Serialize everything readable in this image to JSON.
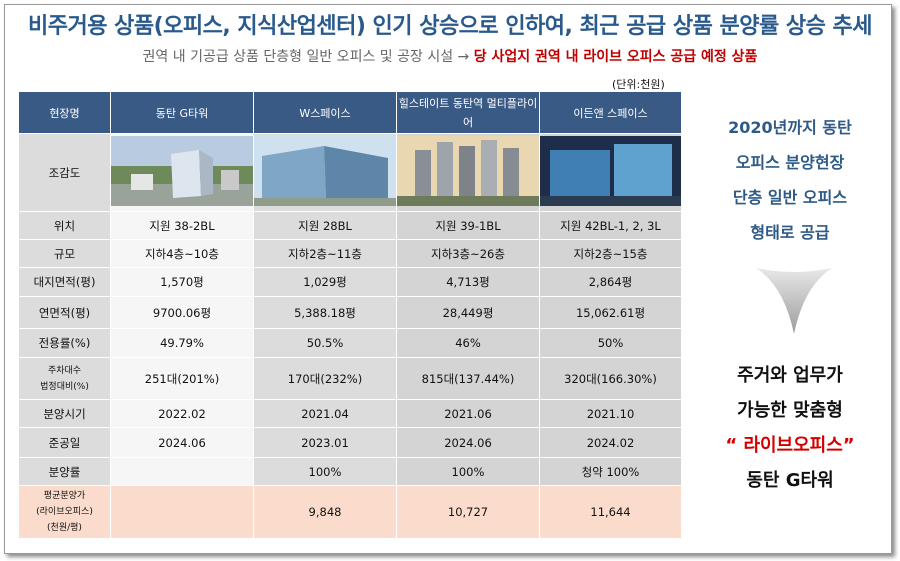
{
  "header": {
    "title": "비주거용 상품(오피스, 지식산업센터) 인기 상승으로 인하여, 최근 공급 상품 분양률 상승 추세",
    "subtitle_prefix": "권역 내 기공급 상품 단층형 일반 오피스 및 공장 시설 →",
    "subtitle_highlight": "당 사업지 권역 내 라이브 오피스 공급 예정 상품",
    "unit": "(단위:천원)"
  },
  "table": {
    "columns": [
      "현장명",
      "동탄 G타워",
      "W스페이스",
      "힐스테이트 동탄역 멀티플라이어",
      "이든앤 스페이스"
    ],
    "image_row_label": "조감도",
    "rows": [
      {
        "label": "위치",
        "values": [
          "지원 38-2BL",
          "지원 28BL",
          "지원 39-1BL",
          "지원 42BL-1, 2, 3L"
        ]
      },
      {
        "label": "규모",
        "values": [
          "지하4층~10층",
          "지하2층~11층",
          "지하3층~26층",
          "지하2층~15층"
        ]
      },
      {
        "label": "대지면적(평)",
        "values": [
          "1,570평",
          "1,029평",
          "4,713평",
          "2,864평"
        ]
      },
      {
        "label": "연면적(평)",
        "values": [
          "9700.06평",
          "5,388.18평",
          "28,449평",
          "15,062.61평"
        ]
      },
      {
        "label": "전용률(%)",
        "values": [
          "49.79%",
          "50.5%",
          "46%",
          "50%"
        ]
      },
      {
        "label_line1": "주차대수",
        "label_line2": "법정대비(%)",
        "values": [
          "251대(201%)",
          "170대(232%)",
          "815대(137.44%)",
          "320대(166.30%)"
        ]
      },
      {
        "label": "분양시기",
        "values": [
          "2022.02",
          "2021.04",
          "2021.06",
          "2021.10"
        ]
      },
      {
        "label": "준공일",
        "values": [
          "2024.06",
          "2023.01",
          "2024.06",
          "2024.02"
        ]
      },
      {
        "label": "분양률",
        "values": [
          "",
          "100%",
          "100%",
          "청약 100%"
        ]
      }
    ],
    "price_row": {
      "label_line1": "평균분양가",
      "label_line2": "(라이브오피스)",
      "label_line3": "(천원/평)",
      "values": [
        "",
        "9,848",
        "10,727",
        "11,644"
      ]
    }
  },
  "side_note": {
    "line1": "2020년까지 동탄",
    "line2": "오피스 분양현장",
    "line3": "단층 일반 오피스",
    "line4": "형태로 공급"
  },
  "conclusion": {
    "line1": "주거와 업무가",
    "line2": "가능한 맞춤형",
    "line3": "“ 라이브오피스”",
    "line4": "동탄 G타워"
  },
  "colors": {
    "header_bg": "#3a5a86",
    "title": "#2a5a8c",
    "highlight": "#c00000",
    "price_row_bg": "#fbdccc"
  }
}
